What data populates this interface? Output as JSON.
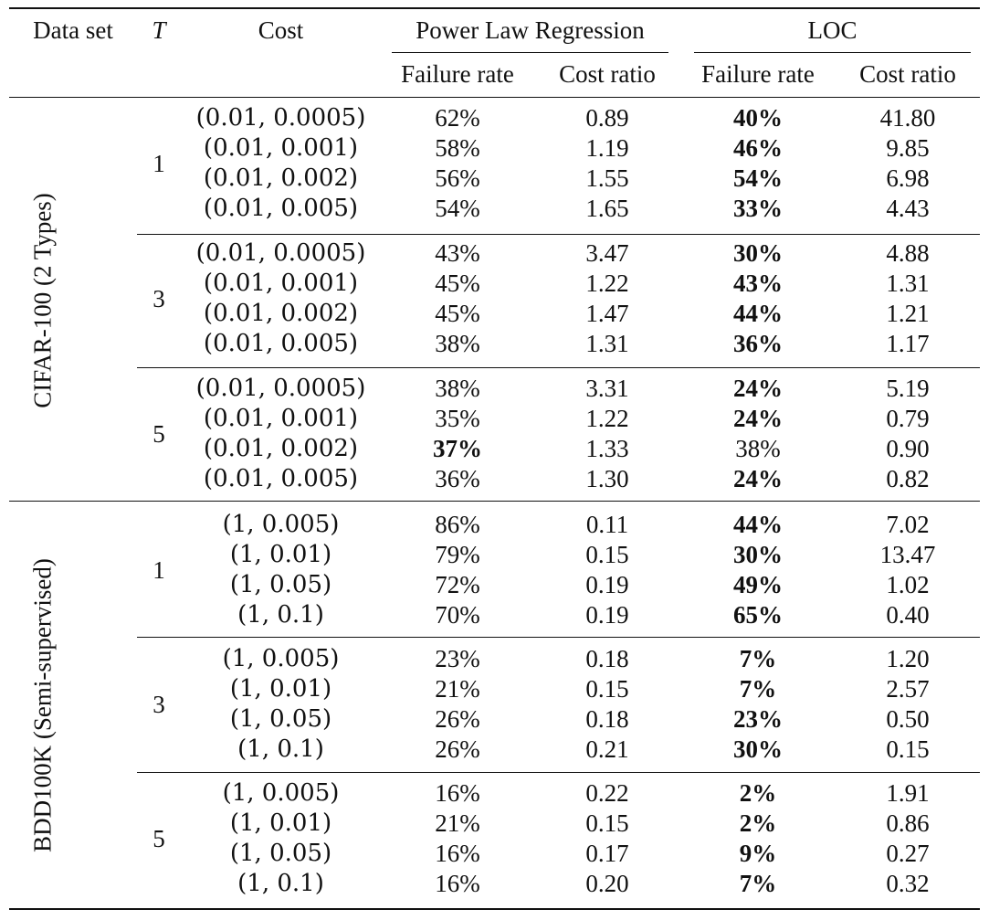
{
  "header": {
    "dataset": "Data set",
    "t": "T",
    "cost": "Cost",
    "plr": "Power Law Regression",
    "loc": "LOC",
    "failure_rate": "Failure rate",
    "cost_ratio": "Cost ratio"
  },
  "datasets": [
    {
      "name": "CIFAR-100 (2 Types)",
      "groups": [
        {
          "t": "1",
          "rows": [
            {
              "cost": "(0.01, 0.0005)",
              "plr_fail": "62%",
              "plr_ratio": "0.89",
              "loc_fail": "40%",
              "loc_ratio": "41.80",
              "bold": "loc"
            },
            {
              "cost": "(0.01, 0.001)",
              "plr_fail": "58%",
              "plr_ratio": "1.19",
              "loc_fail": "46%",
              "loc_ratio": "9.85",
              "bold": "loc"
            },
            {
              "cost": "(0.01, 0.002)",
              "plr_fail": "56%",
              "plr_ratio": "1.55",
              "loc_fail": "54%",
              "loc_ratio": "6.98",
              "bold": "loc"
            },
            {
              "cost": "(0.01, 0.005)",
              "plr_fail": "54%",
              "plr_ratio": "1.65",
              "loc_fail": "33%",
              "loc_ratio": "4.43",
              "bold": "loc"
            }
          ]
        },
        {
          "t": "3",
          "rows": [
            {
              "cost": "(0.01, 0.0005)",
              "plr_fail": "43%",
              "plr_ratio": "3.47",
              "loc_fail": "30%",
              "loc_ratio": "4.88",
              "bold": "loc"
            },
            {
              "cost": "(0.01, 0.001)",
              "plr_fail": "45%",
              "plr_ratio": "1.22",
              "loc_fail": "43%",
              "loc_ratio": "1.31",
              "bold": "loc"
            },
            {
              "cost": "(0.01, 0.002)",
              "plr_fail": "45%",
              "plr_ratio": "1.47",
              "loc_fail": "44%",
              "loc_ratio": "1.21",
              "bold": "loc"
            },
            {
              "cost": "(0.01, 0.005)",
              "plr_fail": "38%",
              "plr_ratio": "1.31",
              "loc_fail": "36%",
              "loc_ratio": "1.17",
              "bold": "loc"
            }
          ]
        },
        {
          "t": "5",
          "rows": [
            {
              "cost": "(0.01, 0.0005)",
              "plr_fail": "38%",
              "plr_ratio": "3.31",
              "loc_fail": "24%",
              "loc_ratio": "5.19",
              "bold": "loc"
            },
            {
              "cost": "(0.01, 0.001)",
              "plr_fail": "35%",
              "plr_ratio": "1.22",
              "loc_fail": "24%",
              "loc_ratio": "0.79",
              "bold": "loc"
            },
            {
              "cost": "(0.01, 0.002)",
              "plr_fail": "37%",
              "plr_ratio": "1.33",
              "loc_fail": "38%",
              "loc_ratio": "0.90",
              "bold": "plr"
            },
            {
              "cost": "(0.01, 0.005)",
              "plr_fail": "36%",
              "plr_ratio": "1.30",
              "loc_fail": "24%",
              "loc_ratio": "0.82",
              "bold": "loc"
            }
          ]
        }
      ]
    },
    {
      "name": "BDD100K (Semi-supervised)",
      "groups": [
        {
          "t": "1",
          "rows": [
            {
              "cost": "(1, 0.005)",
              "plr_fail": "86%",
              "plr_ratio": "0.11",
              "loc_fail": "44%",
              "loc_ratio": "7.02",
              "bold": "loc"
            },
            {
              "cost": "(1, 0.01)",
              "plr_fail": "79%",
              "plr_ratio": "0.15",
              "loc_fail": "30%",
              "loc_ratio": "13.47",
              "bold": "loc"
            },
            {
              "cost": "(1, 0.05)",
              "plr_fail": "72%",
              "plr_ratio": "0.19",
              "loc_fail": "49%",
              "loc_ratio": "1.02",
              "bold": "loc"
            },
            {
              "cost": "(1, 0.1)",
              "plr_fail": "70%",
              "plr_ratio": "0.19",
              "loc_fail": "65%",
              "loc_ratio": "0.40",
              "bold": "loc"
            }
          ]
        },
        {
          "t": "3",
          "rows": [
            {
              "cost": "(1, 0.005)",
              "plr_fail": "23%",
              "plr_ratio": "0.18",
              "loc_fail": "7%",
              "loc_ratio": "1.20",
              "bold": "loc"
            },
            {
              "cost": "(1, 0.01)",
              "plr_fail": "21%",
              "plr_ratio": "0.15",
              "loc_fail": "7%",
              "loc_ratio": "2.57",
              "bold": "loc"
            },
            {
              "cost": "(1, 0.05)",
              "plr_fail": "26%",
              "plr_ratio": "0.18",
              "loc_fail": "23%",
              "loc_ratio": "0.50",
              "bold": "loc"
            },
            {
              "cost": "(1, 0.1)",
              "plr_fail": "26%",
              "plr_ratio": "0.21",
              "loc_fail": "30%",
              "loc_ratio": "0.15",
              "bold": "loc"
            }
          ]
        },
        {
          "t": "5",
          "rows": [
            {
              "cost": "(1, 0.005)",
              "plr_fail": "16%",
              "plr_ratio": "0.22",
              "loc_fail": "2%",
              "loc_ratio": "1.91",
              "bold": "loc"
            },
            {
              "cost": "(1, 0.01)",
              "plr_fail": "21%",
              "plr_ratio": "0.15",
              "loc_fail": "2%",
              "loc_ratio": "0.86",
              "bold": "loc"
            },
            {
              "cost": "(1, 0.05)",
              "plr_fail": "16%",
              "plr_ratio": "0.17",
              "loc_fail": "9%",
              "loc_ratio": "0.27",
              "bold": "loc"
            },
            {
              "cost": "(1, 0.1)",
              "plr_fail": "16%",
              "plr_ratio": "0.20",
              "loc_fail": "7%",
              "loc_ratio": "0.32",
              "bold": "loc"
            }
          ]
        }
      ]
    }
  ]
}
